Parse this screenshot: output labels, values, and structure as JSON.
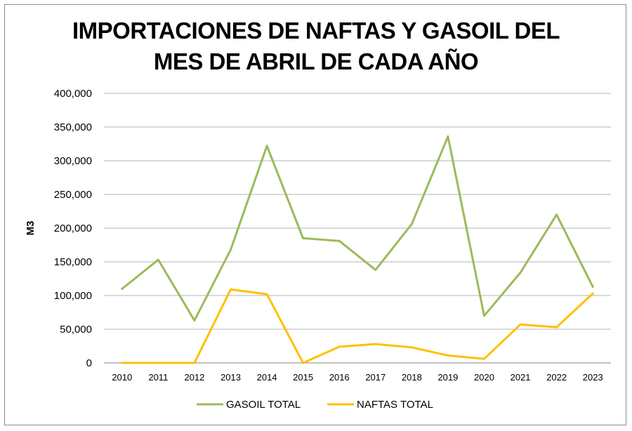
{
  "chart_data": {
    "type": "line",
    "title_lines": [
      "IMPORTACIONES DE NAFTAS Y GASOIL DEL",
      "MES DE ABRIL DE CADA AÑO"
    ],
    "xlabel": "",
    "ylabel": "M3",
    "ylim": [
      0,
      400000
    ],
    "yticks": [
      0,
      50000,
      100000,
      150000,
      200000,
      250000,
      300000,
      350000,
      400000
    ],
    "ytick_labels": [
      "0",
      "50,000",
      "100,000",
      "150,000",
      "200,000",
      "250,000",
      "300,000",
      "350,000",
      "400,000"
    ],
    "categories": [
      "2010",
      "2011",
      "2012",
      "2013",
      "2014",
      "2015",
      "2016",
      "2017",
      "2018",
      "2019",
      "2020",
      "2021",
      "2022",
      "2023"
    ],
    "grid": true,
    "legend_position": "bottom",
    "series": [
      {
        "name": "GASOIL TOTAL",
        "color": "#9bbb59",
        "values": [
          110000,
          153000,
          63000,
          168000,
          322000,
          185000,
          181000,
          138000,
          206000,
          336000,
          70000,
          134000,
          220000,
          113000
        ]
      },
      {
        "name": "NAFTAS TOTAL",
        "color": "#ffc000",
        "values": [
          0,
          0,
          0,
          109000,
          102000,
          0,
          24000,
          28000,
          23000,
          11000,
          6000,
          57000,
          53000,
          103000
        ]
      }
    ]
  }
}
